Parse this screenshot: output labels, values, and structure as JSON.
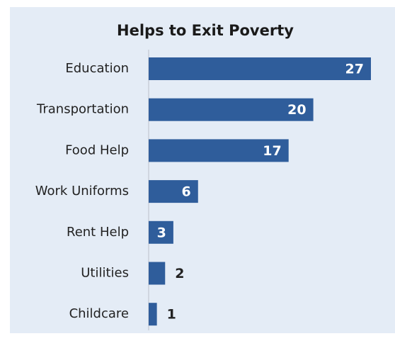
{
  "chart_data": {
    "type": "bar",
    "orientation": "horizontal",
    "title": "Helps to Exit Poverty",
    "categories": [
      "Education",
      "Transportation",
      "Food Help",
      "Work Uniforms",
      "Rent Help",
      "Utilities",
      "Childcare"
    ],
    "values": [
      27,
      20,
      17,
      6,
      3,
      2,
      1
    ],
    "color": "#2f5d9b"
  }
}
